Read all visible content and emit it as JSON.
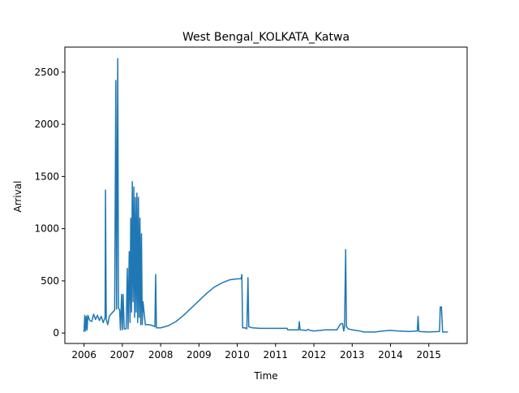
{
  "chart_data": {
    "type": "line",
    "title": "West Bengal_KOLKATA_Katwa",
    "x_label": "Time",
    "y_label": "Arrival",
    "x": [
      2006.0,
      2006.02,
      2006.04,
      2006.06,
      2006.08,
      2006.1,
      2006.15,
      2006.2,
      2006.25,
      2006.3,
      2006.35,
      2006.4,
      2006.45,
      2006.5,
      2006.55,
      2006.56,
      2006.58,
      2006.62,
      2006.66,
      2006.7,
      2006.75,
      2006.8,
      2006.83,
      2006.85,
      2006.88,
      2006.9,
      2006.93,
      2006.95,
      2006.98,
      2007.0,
      2007.02,
      2007.05,
      2007.1,
      2007.13,
      2007.15,
      2007.18,
      2007.2,
      2007.22,
      2007.24,
      2007.26,
      2007.28,
      2007.3,
      2007.32,
      2007.34,
      2007.36,
      2007.38,
      2007.4,
      2007.42,
      2007.44,
      2007.46,
      2007.48,
      2007.5,
      2007.52,
      2007.54,
      2007.6,
      2007.7,
      2007.8,
      2007.85,
      2007.87,
      2007.89,
      2008.0,
      2008.2,
      2008.4,
      2008.6,
      2008.8,
      2009.0,
      2009.2,
      2009.4,
      2009.6,
      2009.8,
      2010.0,
      2010.1,
      2010.12,
      2010.14,
      2010.2,
      2010.25,
      2010.28,
      2010.3,
      2010.4,
      2010.6,
      2011.0,
      2011.3,
      2011.32,
      2011.5,
      2011.6,
      2011.62,
      2011.64,
      2011.8,
      2011.85,
      2011.9,
      2012.0,
      2012.3,
      2012.6,
      2012.7,
      2012.75,
      2012.78,
      2012.8,
      2012.83,
      2012.85,
      2012.9,
      2013.0,
      2013.2,
      2013.3,
      2013.6,
      2013.8,
      2014.0,
      2014.2,
      2014.5,
      2014.7,
      2014.72,
      2014.74,
      2015.0,
      2015.28,
      2015.3,
      2015.33,
      2015.36,
      2015.5
    ],
    "series": [
      {
        "color": "#1f77b4",
        "values": [
          10,
          170,
          20,
          160,
          30,
          170,
          120,
          110,
          180,
          130,
          170,
          120,
          160,
          100,
          150,
          1370,
          130,
          80,
          160,
          180,
          200,
          220,
          2420,
          230,
          2630,
          240,
          220,
          30,
          370,
          30,
          370,
          40,
          40,
          620,
          40,
          780,
          100,
          1100,
          200,
          1450,
          300,
          1400,
          150,
          1300,
          200,
          1340,
          100,
          1300,
          150,
          1100,
          80,
          950,
          80,
          300,
          80,
          80,
          70,
          60,
          560,
          50,
          50,
          70,
          110,
          170,
          240,
          310,
          380,
          440,
          480,
          510,
          520,
          520,
          560,
          50,
          50,
          40,
          530,
          60,
          50,
          45,
          45,
          45,
          30,
          30,
          30,
          110,
          30,
          25,
          35,
          25,
          20,
          30,
          30,
          90,
          90,
          20,
          60,
          800,
          60,
          40,
          30,
          20,
          10,
          10,
          20,
          25,
          20,
          15,
          20,
          160,
          15,
          10,
          15,
          250,
          250,
          10,
          10
        ]
      }
    ],
    "xlim": [
      2005.5,
      2016.0
    ],
    "xticks": [
      2006,
      2007,
      2008,
      2009,
      2010,
      2011,
      2012,
      2013,
      2014,
      2015
    ],
    "ylim": [
      -100,
      2740
    ],
    "yticks": [
      0,
      500,
      1000,
      1500,
      2000,
      2500
    ]
  }
}
